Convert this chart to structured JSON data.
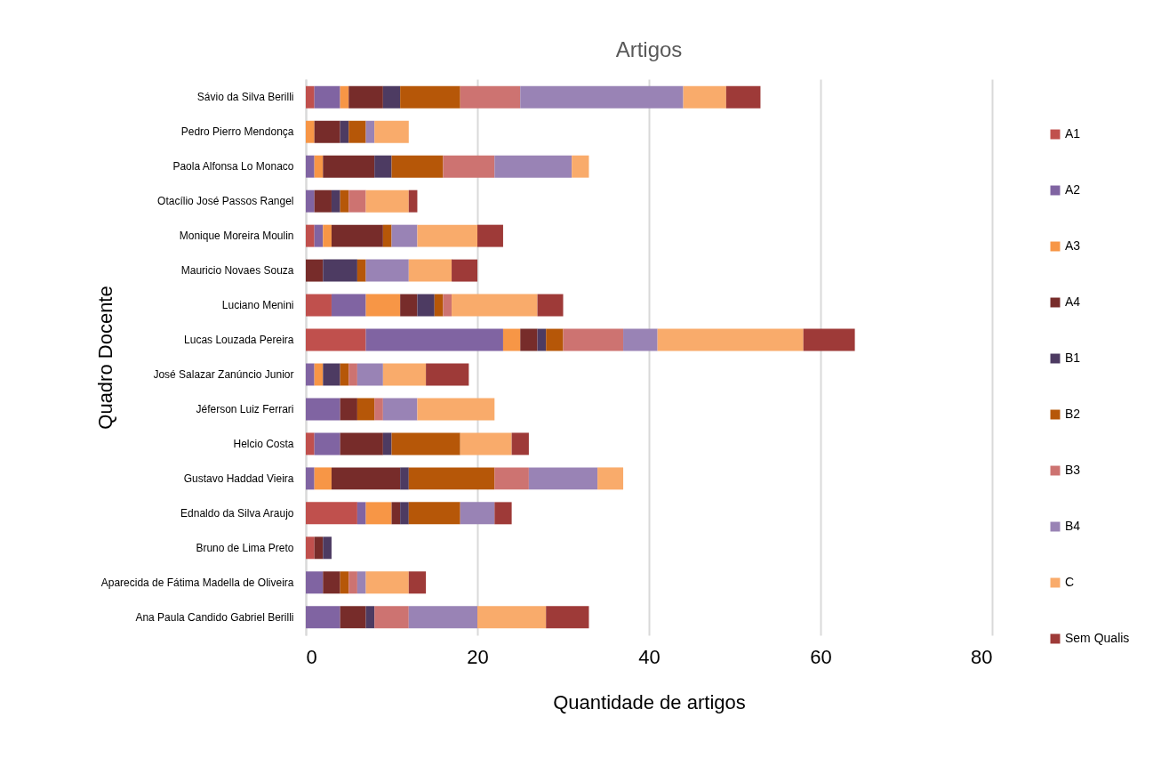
{
  "chart_data": {
    "type": "bar",
    "orientation": "horizontal",
    "stacked": true,
    "title": "Artigos",
    "xlabel": "Quantidade de artigos",
    "ylabel": "Quadro Docente",
    "categories": [
      "Sávio da Silva Berilli",
      "Pedro Pierro Mendonça",
      "Paola Alfonsa Lo Monaco",
      "Otacílio José Passos Rangel",
      "Monique Moreira Moulin",
      "Mauricio Novaes Souza",
      "Luciano Menini",
      "Lucas Louzada Pereira",
      "José Salazar Zanúncio Junior",
      "Jéferson Luiz Ferrari",
      "Helcio Costa",
      "Gustavo Haddad Vieira",
      "Ednaldo da Silva Araujo",
      "Bruno de Lima Preto",
      "Aparecida de Fátima Madella de Oliveira",
      "Ana Paula Candido Gabriel Berilli"
    ],
    "series": [
      {
        "name": "A1",
        "color": "#c0504d",
        "values": [
          1,
          0,
          0,
          0,
          1,
          0,
          3,
          7,
          0,
          0,
          1,
          0,
          6,
          1,
          0,
          0
        ]
      },
      {
        "name": "A2",
        "color": "#8064a2",
        "values": [
          3,
          0,
          1,
          1,
          1,
          0,
          4,
          16,
          1,
          4,
          3,
          1,
          1,
          0,
          2,
          4
        ]
      },
      {
        "name": "A3",
        "color": "#f79646",
        "values": [
          1,
          1,
          1,
          0,
          1,
          0,
          4,
          2,
          1,
          0,
          0,
          2,
          3,
          0,
          0,
          0
        ]
      },
      {
        "name": "A4",
        "color": "#772c2a",
        "values": [
          4,
          3,
          6,
          2,
          6,
          2,
          2,
          2,
          0,
          2,
          5,
          8,
          1,
          1,
          2,
          3
        ]
      },
      {
        "name": "B1",
        "color": "#4d3b62",
        "values": [
          2,
          1,
          2,
          1,
          0,
          4,
          2,
          1,
          2,
          0,
          1,
          1,
          1,
          1,
          0,
          1
        ]
      },
      {
        "name": "B2",
        "color": "#b65708",
        "values": [
          7,
          2,
          6,
          1,
          1,
          1,
          1,
          2,
          1,
          2,
          8,
          10,
          6,
          0,
          1,
          0
        ]
      },
      {
        "name": "B3",
        "color": "#cd7371",
        "values": [
          7,
          0,
          6,
          2,
          0,
          0,
          1,
          7,
          1,
          1,
          0,
          4,
          0,
          0,
          1,
          4
        ]
      },
      {
        "name": "B4",
        "color": "#9983b5",
        "values": [
          19,
          1,
          9,
          0,
          3,
          5,
          0,
          4,
          3,
          4,
          0,
          8,
          4,
          0,
          1,
          8
        ]
      },
      {
        "name": "C",
        "color": "#f9ab6b",
        "values": [
          5,
          4,
          2,
          5,
          7,
          5,
          10,
          17,
          5,
          9,
          6,
          3,
          0,
          0,
          5,
          8
        ]
      },
      {
        "name": "Sem Qualis",
        "color": "#9e3a38",
        "values": [
          4,
          0,
          0,
          1,
          3,
          3,
          3,
          6,
          5,
          0,
          2,
          0,
          2,
          0,
          2,
          5
        ]
      }
    ],
    "xlim": [
      0,
      80
    ],
    "xticks": [
      0,
      20,
      40,
      60,
      80
    ],
    "grid": "x",
    "legend": "right"
  }
}
